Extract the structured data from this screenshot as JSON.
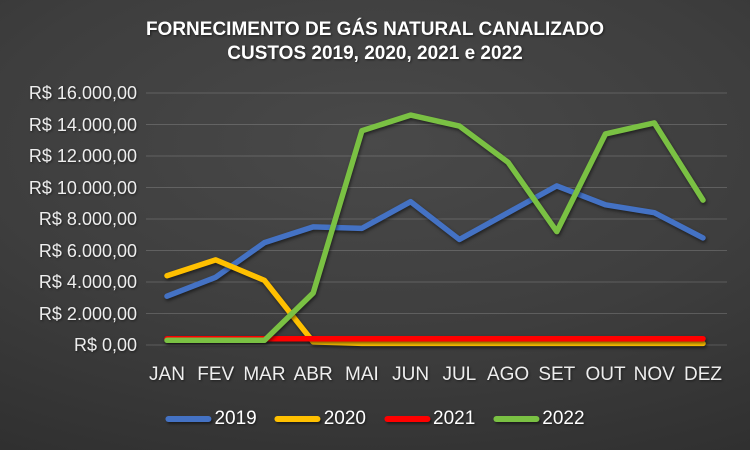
{
  "title": {
    "line1": "FORNECIMENTO DE GÁS NATURAL CANALIZADO",
    "line2": "CUSTOS 2019, 2020, 2021 e 2022"
  },
  "chart_data": {
    "type": "line",
    "title": "FORNECIMENTO DE GÁS NATURAL CANALIZADO — CUSTOS 2019, 2020, 2021 e 2022",
    "currency": "R$",
    "categories": [
      "JAN",
      "FEV",
      "MAR",
      "ABR",
      "MAI",
      "JUN",
      "JUL",
      "AGO",
      "SET",
      "OUT",
      "NOV",
      "DEZ"
    ],
    "series": [
      {
        "name": "2019",
        "color": "#4472C4",
        "values": [
          3100,
          4300,
          6500,
          7500,
          7400,
          9100,
          6700,
          8400,
          10100,
          8900,
          8400,
          6800
        ]
      },
      {
        "name": "2020",
        "color": "#FFC000",
        "values": [
          4400,
          5400,
          4100,
          200,
          100,
          100,
          100,
          100,
          100,
          100,
          100,
          100
        ]
      },
      {
        "name": "2021",
        "color": "#FF0000",
        "values": [
          400,
          400,
          400,
          400,
          400,
          400,
          400,
          400,
          400,
          400,
          400,
          400
        ]
      },
      {
        "name": "2022",
        "color": "#7AC143",
        "values": [
          300,
          300,
          300,
          3300,
          13600,
          14600,
          13900,
          11600,
          7200,
          13400,
          14100,
          9200
        ]
      }
    ],
    "ylim": [
      0,
      16000
    ],
    "y_tick_step": 2000,
    "y_ticks": [
      {
        "value": 16000,
        "label": "R$ 16.000,00"
      },
      {
        "value": 14000,
        "label": "R$ 14.000,00"
      },
      {
        "value": 12000,
        "label": "R$ 12.000,00"
      },
      {
        "value": 10000,
        "label": "R$ 10.000,00"
      },
      {
        "value": 8000,
        "label": "R$ 8.000,00"
      },
      {
        "value": 6000,
        "label": "R$ 6.000,00"
      },
      {
        "value": 4000,
        "label": "R$ 4.000,00"
      },
      {
        "value": 2000,
        "label": "R$ 2.000,00"
      },
      {
        "value": 0,
        "label": "R$ 0,00"
      }
    ],
    "grid": true,
    "legend_position": "bottom",
    "colors": {
      "background": "#3e3e3e",
      "text": "#ffffff",
      "gridline": "#5a5a5a"
    }
  }
}
